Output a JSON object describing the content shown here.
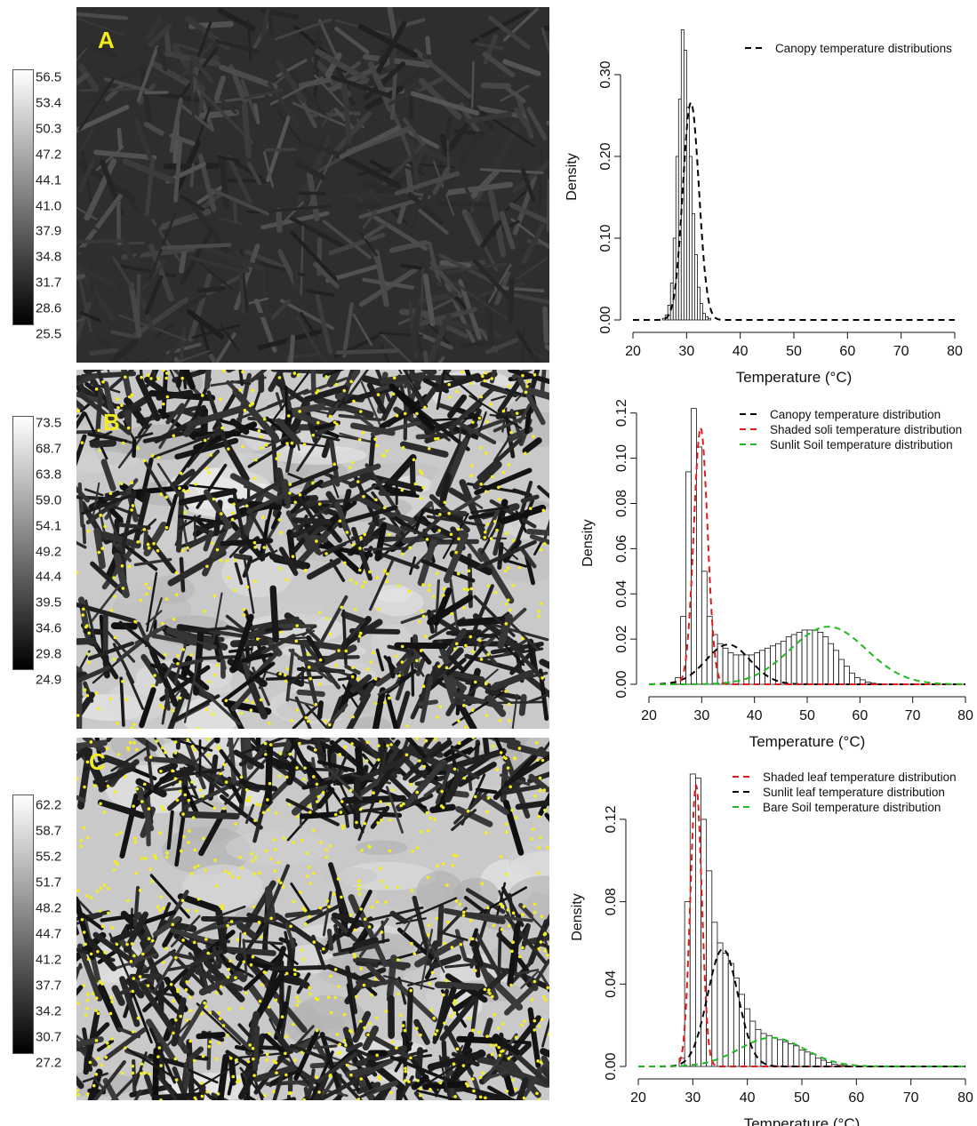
{
  "panels": [
    {
      "letter": "A",
      "colorbar_ticks": [
        "56.5",
        "53.4",
        "50.3",
        "47.2",
        "44.1",
        "41.0",
        "37.9",
        "34.8",
        "31.7",
        "28.6",
        "25.5"
      ],
      "image_gradient": "dark"
    },
    {
      "letter": "B",
      "colorbar_ticks": [
        "73.5",
        "68.7",
        "63.8",
        "59.0",
        "54.1",
        "49.2",
        "44.4",
        "39.5",
        "34.6",
        "29.8",
        "24.9"
      ],
      "image_gradient": "rows"
    },
    {
      "letter": "C",
      "colorbar_ticks": [
        "62.2",
        "58.7",
        "55.2",
        "51.7",
        "48.2",
        "44.7",
        "41.2",
        "37.7",
        "34.2",
        "30.7",
        "27.2"
      ],
      "image_gradient": "rows"
    }
  ],
  "chart_data": [
    {
      "type": "bar",
      "xlabel": "Temperature (°C)",
      "ylabel": "Density",
      "xlim": [
        20,
        80
      ],
      "ylim": [
        0,
        0.35
      ],
      "xticks": [
        "20",
        "30",
        "40",
        "50",
        "60",
        "70",
        "80"
      ],
      "yticks": [
        "0.00",
        "0.10",
        "0.20",
        "0.30"
      ],
      "ytick_values": [
        0,
        0.1,
        0.2,
        0.3
      ],
      "bins": {
        "start": 25.5,
        "width": 0.5,
        "values": [
          0.002,
          0.006,
          0.018,
          0.045,
          0.1,
          0.2,
          0.27,
          0.355,
          0.33,
          0.26,
          0.2,
          0.13,
          0.08,
          0.04,
          0.02,
          0.008,
          0.004,
          0.002
        ]
      },
      "series": [
        {
          "name": "Canopy temperature distributions",
          "color": "#000000",
          "dist": "normal",
          "mu": 30.8,
          "sigma": 1.5,
          "weight": 1.0
        }
      ]
    },
    {
      "type": "bar",
      "xlabel": "Temperature (°C)",
      "ylabel": "Density",
      "xlim": [
        20,
        80
      ],
      "ylim": [
        0,
        0.125
      ],
      "xticks": [
        "20",
        "30",
        "40",
        "50",
        "60",
        "70",
        "80"
      ],
      "yticks": [
        "0.00",
        "0.02",
        "0.04",
        "0.06",
        "0.08",
        "0.10",
        "0.12"
      ],
      "ytick_values": [
        0,
        0.02,
        0.04,
        0.06,
        0.08,
        0.1,
        0.12
      ],
      "bins": {
        "start": 25,
        "width": 1,
        "values": [
          0.003,
          0.03,
          0.094,
          0.122,
          0.105,
          0.05,
          0.03,
          0.022,
          0.018,
          0.016,
          0.014,
          0.013,
          0.013,
          0.013,
          0.013,
          0.014,
          0.015,
          0.016,
          0.017,
          0.018,
          0.019,
          0.021,
          0.022,
          0.023,
          0.024,
          0.024,
          0.024,
          0.023,
          0.021,
          0.018,
          0.015,
          0.011,
          0.008,
          0.005,
          0.003,
          0.002,
          0.001,
          0.0005,
          0.0002
        ]
      },
      "series": [
        {
          "name": "Canopy temperature distribution",
          "color": "#000000",
          "dist": "normal",
          "mu": 35,
          "sigma": 4.2,
          "weight": 0.185
        },
        {
          "name": "Shaded soli temperature distribution",
          "color": "#e01b1b",
          "dist": "normal",
          "mu": 29.8,
          "sigma": 1.3,
          "weight": 0.37
        },
        {
          "name": "Sunlit Soil temperature distribution",
          "color": "#22b822",
          "dist": "normal",
          "mu": 54,
          "sigma": 7.2,
          "weight": 0.46
        }
      ]
    },
    {
      "type": "bar",
      "xlabel": "Temperature (°C)",
      "ylabel": "Density",
      "xlim": [
        20,
        80
      ],
      "ylim": [
        0,
        0.145
      ],
      "xticks": [
        "20",
        "30",
        "40",
        "50",
        "60",
        "70",
        "80"
      ],
      "yticks": [
        "0.00",
        "0.04",
        "0.08",
        "0.12"
      ],
      "ytick_values": [
        0,
        0.04,
        0.08,
        0.12
      ],
      "bins": {
        "start": 27.5,
        "width": 1,
        "values": [
          0.004,
          0.08,
          0.142,
          0.14,
          0.12,
          0.095,
          0.07,
          0.06,
          0.055,
          0.05,
          0.043,
          0.035,
          0.028,
          0.022,
          0.018,
          0.016,
          0.015,
          0.014,
          0.013,
          0.012,
          0.011,
          0.01,
          0.008,
          0.007,
          0.006,
          0.004,
          0.003,
          0.002,
          0.001,
          0.0008,
          0.0004
        ]
      },
      "series": [
        {
          "name": "Shaded leaf temperature distribution",
          "color": "#e01b1b",
          "dist": "normal",
          "mu": 30.6,
          "sigma": 1.05,
          "weight": 0.36
        },
        {
          "name": "Sunlit leaf temperature distribution",
          "color": "#000000",
          "dist": "normal",
          "mu": 35.5,
          "sigma": 2.8,
          "weight": 0.4
        },
        {
          "name": "Bare Soil temperature distribution",
          "color": "#22b822",
          "dist": "normal",
          "mu": 44.5,
          "sigma": 6.0,
          "weight": 0.21
        }
      ]
    }
  ]
}
